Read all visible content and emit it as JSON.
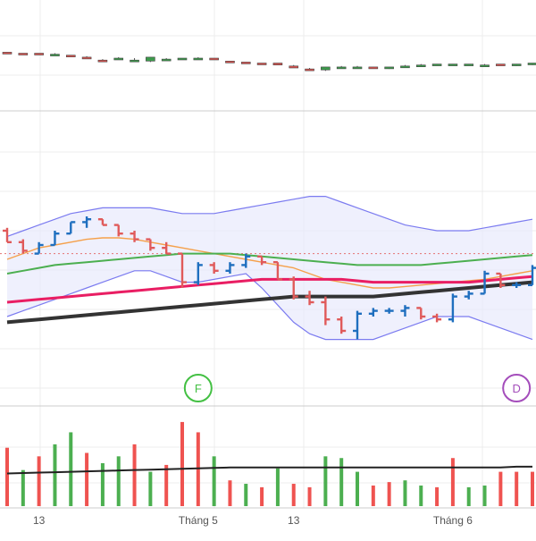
{
  "colors": {
    "up": "#3d9a4c",
    "down": "#d9534f",
    "bar_up": "#1f6fbf",
    "bar_down": "#e05a5a",
    "vol_up": "#4caf50",
    "vol_down": "#ef5350",
    "ma_orange": "#f5a04a",
    "ma_green": "#4caf50",
    "ma_pink": "#e91e63",
    "ma_black": "#333333",
    "band": "#7b7bf0",
    "band_fill": "#e8eafc",
    "grid": "#ececec",
    "separator": "#cccccc",
    "ref_line": "#e57373",
    "marker_f": "#43c043",
    "marker_d": "#a44dbb"
  },
  "x_axis": {
    "ticks": [
      {
        "label": "13",
        "index": 2
      },
      {
        "label": "Tháng 5",
        "index": 12
      },
      {
        "label": "13",
        "index": 18
      },
      {
        "label": "Tháng 6",
        "index": 28
      }
    ]
  },
  "markers": [
    {
      "label": "F",
      "index": 12,
      "type": "f"
    },
    {
      "label": "D",
      "index": 32,
      "type": "d"
    }
  ],
  "chart_data": [
    {
      "type": "candlestick",
      "panel": "top",
      "ylim": [
        0,
        100
      ],
      "series": [
        {
          "values": [
            [
              56,
              56,
              55,
              55
            ],
            [
              55,
              55,
              54,
              54
            ],
            [
              55,
              55,
              54,
              54
            ],
            [
              54,
              55,
              53,
              54
            ],
            [
              53,
              53,
              52,
              52
            ],
            [
              51,
              52,
              50,
              50
            ],
            [
              48,
              49,
              47,
              47
            ],
            [
              50,
              51,
              49,
              50
            ],
            [
              48,
              50,
              47,
              48
            ],
            [
              47,
              51,
              46,
              51
            ],
            [
              49,
              50,
              48,
              49
            ],
            [
              50,
              50,
              49,
              50
            ],
            [
              50,
              51,
              49,
              50
            ],
            [
              50,
              50,
              49,
              49
            ],
            [
              47,
              47,
              46,
              46
            ],
            [
              46,
              46,
              45,
              45
            ],
            [
              45,
              45,
              44,
              44
            ],
            [
              45,
              45,
              43,
              43
            ],
            [
              42,
              43,
              40,
              40
            ],
            [
              39,
              40,
              38,
              38
            ],
            [
              38,
              41,
              37,
              41
            ],
            [
              41,
              42,
              40,
              41
            ],
            [
              41,
              42,
              40,
              41
            ],
            [
              41,
              41,
              40,
              40
            ],
            [
              40,
              41,
              39,
              41
            ],
            [
              42,
              43,
              41,
              42
            ],
            [
              43,
              44,
              42,
              43
            ],
            [
              43,
              44,
              43,
              44
            ],
            [
              44,
              44,
              43,
              44
            ],
            [
              44,
              44,
              43,
              44
            ],
            [
              43,
              44,
              42,
              43
            ],
            [
              44,
              44,
              43,
              43
            ],
            [
              43,
              44,
              42,
              44
            ],
            [
              44,
              45,
              43,
              45
            ]
          ]
        }
      ]
    },
    {
      "type": "ohlc",
      "panel": "main",
      "ylim": [
        0,
        100
      ],
      "series": [
        {
          "name": "price",
          "values": [
            [
              60,
              61,
              56,
              56
            ],
            [
              56,
              57,
              52,
              53
            ],
            [
              52,
              56,
              52,
              55
            ],
            [
              55,
              60,
              55,
              59
            ],
            [
              59,
              63,
              59,
              63
            ],
            [
              63,
              65,
              61,
              64
            ],
            [
              64,
              64,
              62,
              62
            ],
            [
              62,
              62,
              58,
              59
            ],
            [
              59,
              60,
              56,
              57
            ],
            [
              57,
              57,
              53,
              54
            ],
            [
              54,
              56,
              52,
              52
            ],
            [
              52,
              52,
              40,
              42
            ],
            [
              42,
              49,
              41,
              48
            ],
            [
              48,
              49,
              45,
              46
            ],
            [
              46,
              49,
              45,
              48
            ],
            [
              48,
              52,
              47,
              51
            ],
            [
              51,
              51,
              48,
              49
            ],
            [
              49,
              49,
              43,
              43
            ],
            [
              43,
              44,
              36,
              37
            ],
            [
              37,
              39,
              34,
              35
            ],
            [
              35,
              37,
              27,
              29
            ],
            [
              29,
              30,
              24,
              25
            ],
            [
              25,
              32,
              22,
              31
            ],
            [
              31,
              33,
              30,
              32
            ],
            [
              32,
              33,
              31,
              32
            ],
            [
              32,
              34,
              30,
              33
            ],
            [
              33,
              33,
              29,
              30
            ],
            [
              30,
              31,
              28,
              29
            ],
            [
              29,
              38,
              28,
              37
            ],
            [
              37,
              39,
              36,
              38
            ],
            [
              38,
              46,
              38,
              45
            ],
            [
              45,
              45,
              40,
              41
            ],
            [
              41,
              42,
              40,
              41
            ],
            [
              41,
              48,
              41,
              47
            ]
          ]
        },
        {
          "name": "ma_orange",
          "values": [
            50,
            52,
            54,
            55,
            56,
            57,
            57.5,
            57.5,
            57,
            56,
            55,
            54,
            53,
            52,
            51,
            50,
            49,
            48,
            47,
            45,
            43,
            42,
            41,
            40,
            40,
            40.5,
            41,
            41.5,
            42,
            42.5,
            43,
            44,
            45,
            46
          ]
        },
        {
          "name": "ma_green",
          "values": [
            45,
            46,
            47,
            48,
            48.5,
            49,
            49.5,
            50,
            50.5,
            51,
            51.5,
            52,
            52,
            52,
            52,
            51.5,
            51,
            50.5,
            50,
            49.5,
            49,
            48.5,
            48,
            48,
            48,
            48,
            48,
            48.5,
            49,
            49.5,
            50,
            50.5,
            51,
            51.5
          ]
        },
        {
          "name": "ma_pink",
          "values": [
            35,
            35.5,
            36,
            36.5,
            37,
            37.5,
            38,
            38.5,
            39,
            39.5,
            40,
            40.5,
            41,
            41.5,
            42,
            42.5,
            43,
            43,
            43,
            43,
            43,
            43,
            42.5,
            42,
            42,
            42,
            42,
            42,
            42,
            42,
            42.5,
            43,
            43.5,
            44
          ]
        },
        {
          "name": "ma_black",
          "values": [
            28,
            28.5,
            29,
            29.5,
            30,
            30.5,
            31,
            31.5,
            32,
            32.5,
            33,
            33.5,
            34,
            34.5,
            35,
            35.5,
            36,
            36.5,
            37,
            37,
            37,
            37,
            37,
            37,
            37.5,
            38,
            38.5,
            39,
            39.5,
            40,
            40.5,
            41,
            41.5,
            42
          ]
        },
        {
          "name": "band_upper",
          "values": [
            58,
            60,
            62,
            64,
            66,
            67,
            68,
            68,
            68,
            68,
            67,
            66,
            66,
            66,
            67,
            68,
            69,
            70,
            71,
            72,
            72,
            70,
            68,
            66,
            64,
            62,
            61,
            60,
            60,
            60,
            61,
            62,
            63,
            64
          ]
        },
        {
          "name": "band_lower",
          "values": [
            30,
            32,
            34,
            36,
            38,
            40,
            42,
            44,
            46,
            46,
            44,
            42,
            42,
            43,
            44,
            45,
            40,
            34,
            28,
            24,
            22,
            22,
            22,
            22,
            24,
            26,
            28,
            30,
            30,
            30,
            28,
            26,
            24,
            22
          ]
        }
      ],
      "reference_line": 52
    },
    {
      "type": "bar",
      "panel": "volume",
      "ylim": [
        0,
        100
      ],
      "series": [
        {
          "name": "volume",
          "values": [
            68,
            42,
            58,
            72,
            86,
            62,
            50,
            58,
            72,
            40,
            48,
            98,
            86,
            58,
            30,
            26,
            22,
            44,
            26,
            22,
            58,
            56,
            40,
            24,
            28,
            30,
            24,
            22,
            56,
            22,
            24,
            40,
            40,
            40
          ]
        },
        {
          "name": "volume_ma",
          "values": [
            38,
            38.5,
            39,
            39.5,
            40,
            40.5,
            41,
            41.5,
            42,
            42.5,
            43,
            43.5,
            44,
            44.5,
            45,
            45,
            45,
            45,
            45,
            45,
            45,
            45,
            45,
            45,
            45,
            45,
            45,
            45,
            45,
            45,
            45,
            45,
            46,
            46
          ]
        }
      ],
      "up": [
        false,
        true,
        false,
        true,
        true,
        false,
        true,
        true,
        false,
        true,
        false,
        false,
        false,
        true,
        false,
        true,
        false,
        true,
        false,
        false,
        true,
        true,
        true,
        false,
        false,
        true,
        true,
        false,
        false,
        true,
        true,
        false,
        false,
        false
      ]
    }
  ]
}
